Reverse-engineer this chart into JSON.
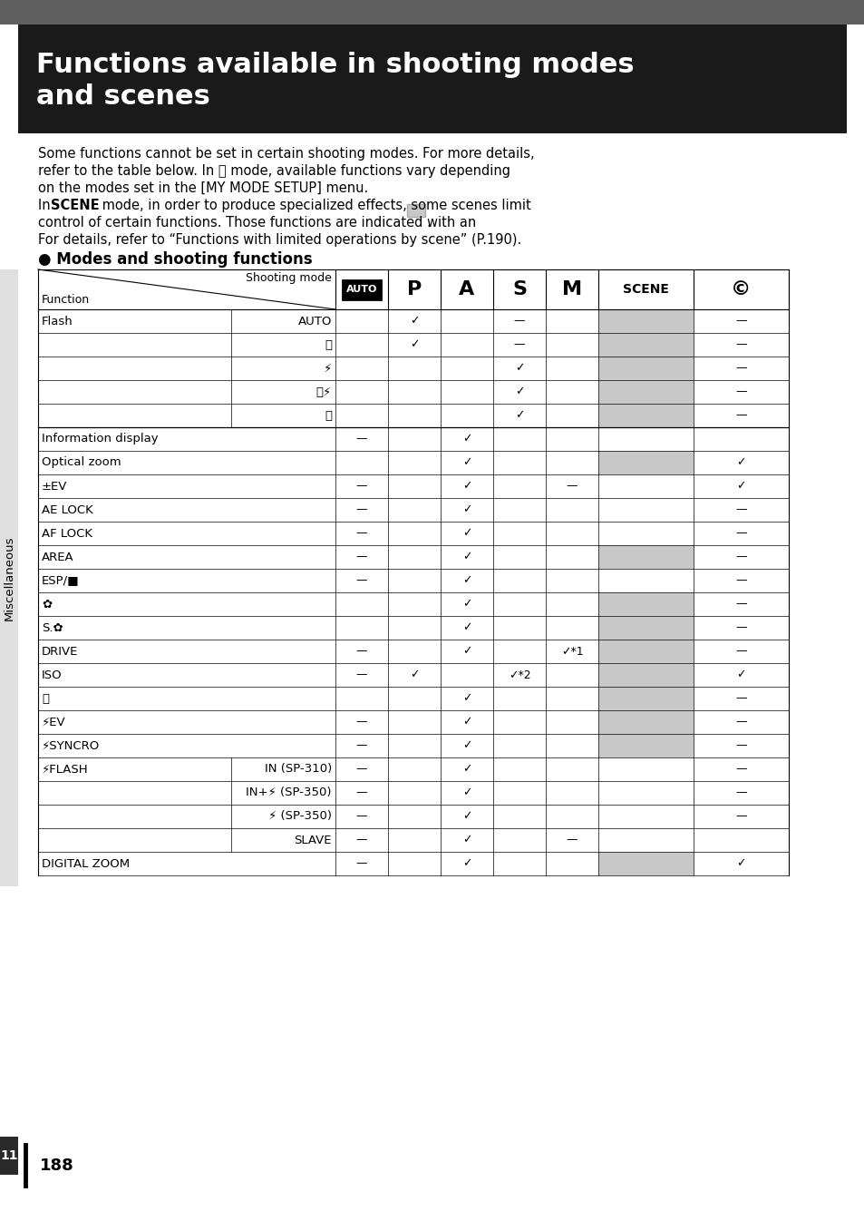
{
  "title_line1": "Functions available in shooting modes",
  "title_line2": "and scenes",
  "top_bar_color": "#5f5f5f",
  "header_bg": "#1a1a1a",
  "gray_color": "#c8c8c8",
  "section_title": "● Modes and shooting functions",
  "page_number": "188",
  "chapter_number": "11",
  "rows": [
    [
      "Flash",
      "AUTO",
      "",
      "✓",
      "",
      "—",
      "",
      true,
      "—"
    ],
    [
      "",
      "Ⓡ",
      "",
      "✓",
      "",
      "—",
      "",
      true,
      "—"
    ],
    [
      "",
      "⚡",
      "",
      "",
      "",
      "✓",
      "",
      true,
      "—"
    ],
    [
      "",
      "Ⓡ⚡",
      "",
      "",
      "",
      "✓",
      "",
      true,
      "—"
    ],
    [
      "",
      "ⓘ",
      "",
      "",
      "",
      "✓",
      "",
      true,
      "—"
    ],
    [
      "Information display",
      "",
      "—",
      "",
      "✓",
      "",
      "",
      false,
      ""
    ],
    [
      "Optical zoom",
      "",
      "",
      "",
      "✓",
      "",
      "",
      true,
      "✓"
    ],
    [
      "±EV",
      "",
      "—",
      "",
      "✓",
      "",
      "—",
      false,
      "✓"
    ],
    [
      "AE LOCK",
      "",
      "—",
      "",
      "✓",
      "",
      "",
      false,
      "—"
    ],
    [
      "AF LOCK",
      "",
      "—",
      "",
      "✓",
      "",
      "",
      false,
      "—"
    ],
    [
      "AREA",
      "",
      "—",
      "",
      "✓",
      "",
      "",
      true,
      "—"
    ],
    [
      "ESP/■",
      "",
      "—",
      "",
      "✓",
      "",
      "",
      false,
      "—"
    ],
    [
      "✿",
      "",
      "",
      "",
      "✓",
      "",
      "",
      true,
      "—"
    ],
    [
      "S.✿",
      "",
      "",
      "",
      "✓",
      "",
      "",
      true,
      "—"
    ],
    [
      "DRIVE",
      "",
      "—",
      "",
      "✓",
      "",
      "✓*1",
      true,
      "—"
    ],
    [
      "ISO",
      "",
      "—",
      "✓",
      "",
      "✓*2",
      "",
      true,
      "✓"
    ],
    [
      "⌛",
      "",
      "",
      "",
      "✓",
      "",
      "",
      true,
      "—"
    ],
    [
      "⚡EV",
      "",
      "—",
      "",
      "✓",
      "",
      "",
      true,
      "—"
    ],
    [
      "⚡SYNCRO",
      "",
      "—",
      "",
      "✓",
      "",
      "",
      true,
      "—"
    ],
    [
      "⚡FLASH",
      "IN (SP-310)",
      "—",
      "",
      "✓",
      "",
      "",
      false,
      "—"
    ],
    [
      "",
      "IN+⚡ (SP-350)",
      "—",
      "",
      "✓",
      "",
      "",
      false,
      "—"
    ],
    [
      "",
      "⚡ (SP-350)",
      "—",
      "",
      "✓",
      "",
      "",
      false,
      "—"
    ],
    [
      "",
      "SLAVE",
      "—",
      "",
      "✓",
      "",
      "—",
      false,
      ""
    ],
    [
      "DIGITAL ZOOM",
      "",
      "—",
      "",
      "✓",
      "",
      "",
      true,
      "✓"
    ]
  ]
}
